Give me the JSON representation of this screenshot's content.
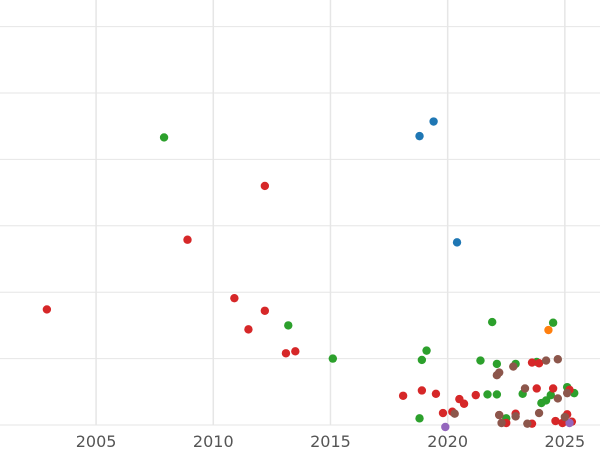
{
  "chart_data": {
    "type": "scatter",
    "title": "",
    "xlabel": "",
    "ylabel": "",
    "grid": true,
    "xlim": [
      2000.9,
      2026.5
    ],
    "ylim": [
      0,
      6.4
    ],
    "x_ticks": [
      2005,
      2010,
      2015,
      2020,
      2025
    ],
    "x_tick_labels": [
      "2005",
      "2010",
      "2015",
      "2020",
      "2025"
    ],
    "y_grid": [
      0.0,
      1.0,
      2.0,
      3.0,
      4.0,
      5.0,
      6.0
    ],
    "series": [
      {
        "name": "blue",
        "color": "#1f77b4",
        "points": [
          {
            "x": 2018.8,
            "y": 4.35
          },
          {
            "x": 2019.4,
            "y": 4.57
          },
          {
            "x": 2020.4,
            "y": 2.75
          }
        ]
      },
      {
        "name": "orange",
        "color": "#ff7f0e",
        "points": [
          {
            "x": 2024.3,
            "y": 1.43
          }
        ]
      },
      {
        "name": "green",
        "color": "#2ca02c",
        "points": [
          {
            "x": 2007.9,
            "y": 4.33
          },
          {
            "x": 2013.2,
            "y": 1.5
          },
          {
            "x": 2015.1,
            "y": 1.0
          },
          {
            "x": 2018.8,
            "y": 0.1
          },
          {
            "x": 2018.9,
            "y": 0.98
          },
          {
            "x": 2019.1,
            "y": 1.12
          },
          {
            "x": 2021.4,
            "y": 0.97
          },
          {
            "x": 2021.7,
            "y": 0.46
          },
          {
            "x": 2021.9,
            "y": 1.55
          },
          {
            "x": 2022.1,
            "y": 0.92
          },
          {
            "x": 2022.1,
            "y": 0.46
          },
          {
            "x": 2022.5,
            "y": 0.1
          },
          {
            "x": 2022.9,
            "y": 0.92
          },
          {
            "x": 2023.2,
            "y": 0.47
          },
          {
            "x": 2023.8,
            "y": 0.95
          },
          {
            "x": 2024.0,
            "y": 0.33
          },
          {
            "x": 2024.2,
            "y": 0.37
          },
          {
            "x": 2024.4,
            "y": 0.45
          },
          {
            "x": 2024.5,
            "y": 1.54
          },
          {
            "x": 2025.1,
            "y": 0.57
          },
          {
            "x": 2025.4,
            "y": 0.48
          }
        ]
      },
      {
        "name": "red",
        "color": "#d62728",
        "points": [
          {
            "x": 2002.9,
            "y": 1.74
          },
          {
            "x": 2008.9,
            "y": 2.79
          },
          {
            "x": 2010.9,
            "y": 1.91
          },
          {
            "x": 2011.5,
            "y": 1.44
          },
          {
            "x": 2012.2,
            "y": 3.6
          },
          {
            "x": 2012.2,
            "y": 1.72
          },
          {
            "x": 2013.1,
            "y": 1.08
          },
          {
            "x": 2013.5,
            "y": 1.11
          },
          {
            "x": 2018.1,
            "y": 0.44
          },
          {
            "x": 2018.9,
            "y": 0.52
          },
          {
            "x": 2019.5,
            "y": 0.47
          },
          {
            "x": 2019.8,
            "y": 0.18
          },
          {
            "x": 2020.2,
            "y": 0.2
          },
          {
            "x": 2020.5,
            "y": 0.39
          },
          {
            "x": 2020.7,
            "y": 0.32
          },
          {
            "x": 2021.2,
            "y": 0.45
          },
          {
            "x": 2022.2,
            "y": 0.15
          },
          {
            "x": 2022.5,
            "y": 0.03
          },
          {
            "x": 2022.9,
            "y": 0.17
          },
          {
            "x": 2023.6,
            "y": 0.02
          },
          {
            "x": 2023.6,
            "y": 0.94
          },
          {
            "x": 2023.8,
            "y": 0.55
          },
          {
            "x": 2023.9,
            "y": 0.93
          },
          {
            "x": 2024.5,
            "y": 0.55
          },
          {
            "x": 2024.6,
            "y": 0.06
          },
          {
            "x": 2024.9,
            "y": 0.03
          },
          {
            "x": 2025.1,
            "y": 0.16
          },
          {
            "x": 2025.2,
            "y": 0.53
          },
          {
            "x": 2025.3,
            "y": 0.05
          }
        ]
      },
      {
        "name": "purple",
        "color": "#9467bd",
        "points": [
          {
            "x": 2019.9,
            "y": -0.03
          },
          {
            "x": 2025.2,
            "y": 0.03
          }
        ]
      },
      {
        "name": "brown",
        "color": "#8c564b",
        "points": [
          {
            "x": 2020.3,
            "y": 0.17
          },
          {
            "x": 2022.1,
            "y": 0.75
          },
          {
            "x": 2022.2,
            "y": 0.79
          },
          {
            "x": 2022.2,
            "y": 0.15
          },
          {
            "x": 2022.3,
            "y": 0.03
          },
          {
            "x": 2022.8,
            "y": 0.88
          },
          {
            "x": 2022.9,
            "y": 0.13
          },
          {
            "x": 2023.3,
            "y": 0.55
          },
          {
            "x": 2023.4,
            "y": 0.02
          },
          {
            "x": 2023.9,
            "y": 0.18
          },
          {
            "x": 2024.2,
            "y": 0.97
          },
          {
            "x": 2024.7,
            "y": 0.99
          },
          {
            "x": 2024.7,
            "y": 0.4
          },
          {
            "x": 2025.0,
            "y": 0.12
          },
          {
            "x": 2025.1,
            "y": 0.48
          }
        ]
      }
    ]
  }
}
